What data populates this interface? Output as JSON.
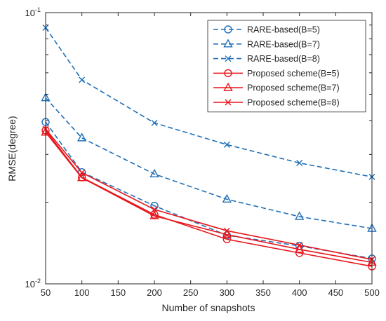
{
  "chart_data": {
    "type": "line",
    "xlabel": "Number of snapshots",
    "ylabel": "RMSE(degree)",
    "yscale": "log",
    "xlim": [
      50,
      500
    ],
    "ylim": [
      0.01,
      0.1
    ],
    "x": [
      50,
      100,
      200,
      300,
      400,
      500
    ],
    "xticks": [
      "50",
      "100",
      "150",
      "200",
      "250",
      "300",
      "350",
      "400",
      "450",
      "500"
    ],
    "yticks": [
      {
        "base": "10",
        "exp": "-2",
        "value": 0.01
      },
      {
        "base": "10",
        "exp": "-1",
        "value": 0.1
      }
    ],
    "grid": false,
    "legend_position": "top-right",
    "colors": {
      "blue": "#1f6fb8",
      "red": "#e8161c",
      "axis": "#262626"
    },
    "series": [
      {
        "name": "RARE-based(B=5)",
        "color": "#1f6fb8",
        "linestyle": "dashed",
        "marker": "circle",
        "values": [
          0.0395,
          0.0258,
          0.0194,
          0.0151,
          0.0138,
          0.0124
        ]
      },
      {
        "name": "RARE-based(B=7)",
        "color": "#1f6fb8",
        "linestyle": "dashed",
        "marker": "triangle",
        "values": [
          0.0485,
          0.0345,
          0.0254,
          0.0205,
          0.0177,
          0.016
        ]
      },
      {
        "name": "RARE-based(B=8)",
        "color": "#1f6fb8",
        "linestyle": "dashed",
        "marker": "x",
        "values": [
          0.088,
          0.0565,
          0.0392,
          0.0326,
          0.0279,
          0.0248
        ]
      },
      {
        "name": "Proposed scheme(B=5)",
        "color": "#e8161c",
        "linestyle": "solid",
        "marker": "circle",
        "values": [
          0.0368,
          0.0247,
          0.018,
          0.0146,
          0.013,
          0.0116
        ]
      },
      {
        "name": "Proposed scheme(B=7)",
        "color": "#e8161c",
        "linestyle": "solid",
        "marker": "triangle",
        "values": [
          0.0362,
          0.0246,
          0.0178,
          0.0152,
          0.0134,
          0.012
        ]
      },
      {
        "name": "Proposed scheme(B=8)",
        "color": "#e8161c",
        "linestyle": "solid",
        "marker": "x",
        "values": [
          0.0372,
          0.0257,
          0.0188,
          0.0157,
          0.0139,
          0.0123
        ]
      }
    ]
  }
}
